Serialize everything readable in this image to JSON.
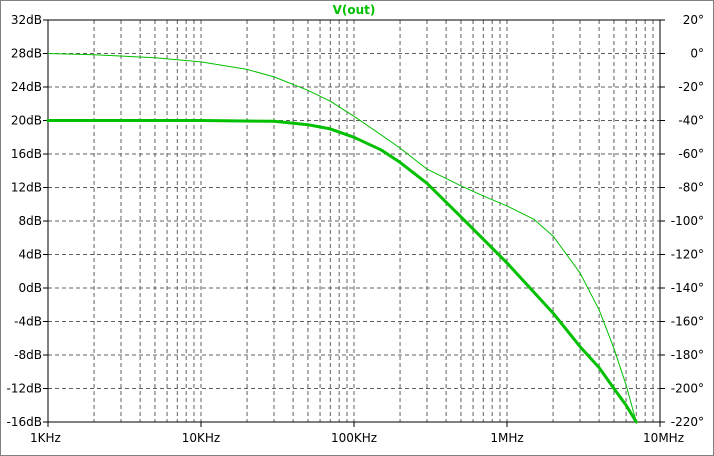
{
  "chart_data": {
    "type": "line",
    "title": "V(out)",
    "x_scale": "log",
    "x_unit": "Hz",
    "xlim": [
      1000,
      10000000
    ],
    "x_tick_labels": [
      "1KHz",
      "10KHz",
      "100KHz",
      "1MHz",
      "10MHz"
    ],
    "y_left_unit": "dB",
    "y_left_lim": [
      -16,
      32
    ],
    "y_left_tick_labels": [
      "32dB",
      "28dB",
      "24dB",
      "20dB",
      "16dB",
      "12dB",
      "8dB",
      "4dB",
      "0dB",
      "-4dB",
      "-8dB",
      "-12dB",
      "-16dB"
    ],
    "y_right_unit": "°",
    "y_right_lim": [
      -220,
      20
    ],
    "y_right_tick_labels": [
      "20°",
      "0°",
      "-20°",
      "-40°",
      "-60°",
      "-80°",
      "-100°",
      "-120°",
      "-140°",
      "-160°",
      "-180°",
      "-200°",
      "-220°"
    ],
    "grid": true,
    "series": [
      {
        "kind": "magnitude",
        "axis": "left",
        "color": "#00c000",
        "x": [
          1000,
          10000,
          30000,
          50000,
          70000,
          100000,
          150000,
          200000,
          300000,
          500000,
          1000000,
          2000000,
          3000000,
          4000000,
          5000000,
          6000000,
          7000000
        ],
        "y": [
          20,
          20,
          19.9,
          19.5,
          19,
          18,
          16.5,
          15,
          12.5,
          8.5,
          3,
          -3,
          -7,
          -9.5,
          -12,
          -14,
          -16
        ]
      },
      {
        "kind": "phase",
        "axis": "right",
        "color": "#00c000",
        "x": [
          1000,
          2000,
          5000,
          10000,
          20000,
          30000,
          50000,
          70000,
          100000,
          150000,
          200000,
          300000,
          500000,
          700000,
          1000000,
          1500000,
          2000000,
          3000000,
          4000000,
          5000000,
          6000000,
          7000000
        ],
        "y": [
          0,
          -0.8,
          -2.5,
          -5,
          -9.5,
          -14,
          -22,
          -28.5,
          -37.5,
          -48.5,
          -56.5,
          -69,
          -79,
          -85,
          -91,
          -99,
          -109,
          -131,
          -153,
          -176,
          -198,
          -220
        ]
      }
    ]
  }
}
